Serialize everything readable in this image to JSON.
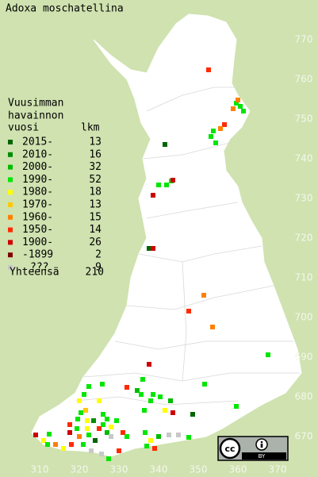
{
  "title": "Adoxa moschatellina",
  "legend": {
    "heading": [
      "Vuusimman",
      "havainnon",
      "vuosi"
    ],
    "count_heading": "lkm",
    "classes": [
      {
        "label": "2015-",
        "color": "#006400",
        "count": 13
      },
      {
        "label": "2010-",
        "color": "#008c00",
        "count": 16
      },
      {
        "label": "2000-",
        "color": "#00bb00",
        "count": 32
      },
      {
        "label": "1990-",
        "color": "#00e600",
        "count": 52
      },
      {
        "label": "1980-",
        "color": "#ffff00",
        "count": 18
      },
      {
        "label": "1970-",
        "color": "#ffc800",
        "count": 13
      },
      {
        "label": "1960-",
        "color": "#ff8000",
        "count": 15
      },
      {
        "label": "1950-",
        "color": "#ff2a00",
        "count": 14
      },
      {
        "label": "1900-",
        "color": "#cc0000",
        "count": 26
      },
      {
        "label": "-1899",
        "color": "#800000",
        "count": 2
      },
      {
        "label": "???",
        "color": "#c8c8c8",
        "count": 9
      }
    ],
    "total_label": "Yhteensä",
    "total": 210
  },
  "xticks": [
    310,
    320,
    330,
    340,
    350,
    360,
    370
  ],
  "yticks": [
    770,
    760,
    750,
    740,
    730,
    720,
    710,
    700,
    690,
    680,
    670
  ],
  "license": "BY",
  "points": [
    {
      "x": 352.6,
      "y": 762.4,
      "class": 7
    },
    {
      "x": 359.6,
      "y": 754,
      "class": 3
    },
    {
      "x": 360.6,
      "y": 753.2,
      "class": 3
    },
    {
      "x": 361.4,
      "y": 752,
      "class": 3
    },
    {
      "x": 358.8,
      "y": 752.6,
      "class": 6
    },
    {
      "x": 360,
      "y": 754.8,
      "class": 6
    },
    {
      "x": 356.6,
      "y": 748.6,
      "class": 7
    },
    {
      "x": 355.6,
      "y": 747.6,
      "class": 6
    },
    {
      "x": 353.8,
      "y": 747,
      "class": 3
    },
    {
      "x": 353.2,
      "y": 745.6,
      "class": 3
    },
    {
      "x": 354.4,
      "y": 744,
      "class": 3
    },
    {
      "x": 341.6,
      "y": 743.6,
      "class": 0
    },
    {
      "x": 343.2,
      "y": 734.4,
      "class": 3
    },
    {
      "x": 342,
      "y": 733.4,
      "class": 3
    },
    {
      "x": 340,
      "y": 733.4,
      "class": 3
    },
    {
      "x": 343.6,
      "y": 734.6,
      "class": 8
    },
    {
      "x": 338.6,
      "y": 730.8,
      "class": 8
    },
    {
      "x": 337.6,
      "y": 717.4,
      "class": 0
    },
    {
      "x": 338.6,
      "y": 717.4,
      "class": 8
    },
    {
      "x": 351.4,
      "y": 705.6,
      "class": 6
    },
    {
      "x": 347.6,
      "y": 701.6,
      "class": 7
    },
    {
      "x": 353.6,
      "y": 697.6,
      "class": 6
    },
    {
      "x": 367.6,
      "y": 690.6,
      "class": 3
    },
    {
      "x": 337.6,
      "y": 688.2,
      "class": 8
    },
    {
      "x": 336,
      "y": 684.4,
      "class": 3
    },
    {
      "x": 351.6,
      "y": 683.2,
      "class": 3
    },
    {
      "x": 332,
      "y": 682.4,
      "class": 7
    },
    {
      "x": 325.8,
      "y": 683.2,
      "class": 3
    },
    {
      "x": 322.4,
      "y": 682.6,
      "class": 3
    },
    {
      "x": 321.2,
      "y": 680.6,
      "class": 3
    },
    {
      "x": 334.6,
      "y": 681.6,
      "class": 2
    },
    {
      "x": 335.6,
      "y": 680.6,
      "class": 3
    },
    {
      "x": 338.6,
      "y": 680.6,
      "class": 3
    },
    {
      "x": 340.4,
      "y": 680,
      "class": 3
    },
    {
      "x": 343,
      "y": 679,
      "class": 2
    },
    {
      "x": 341.6,
      "y": 676.6,
      "class": 4
    },
    {
      "x": 343.6,
      "y": 676,
      "class": 8
    },
    {
      "x": 348.6,
      "y": 675.6,
      "class": 0
    },
    {
      "x": 359.6,
      "y": 677.6,
      "class": 3
    },
    {
      "x": 336.4,
      "y": 676.6,
      "class": 3
    },
    {
      "x": 338,
      "y": 679,
      "class": 3
    },
    {
      "x": 325,
      "y": 679,
      "class": 4
    },
    {
      "x": 320,
      "y": 679,
      "class": 4
    },
    {
      "x": 321.6,
      "y": 676.6,
      "class": 5
    },
    {
      "x": 326,
      "y": 675.6,
      "class": 3
    },
    {
      "x": 319.6,
      "y": 674.4,
      "class": 3
    },
    {
      "x": 323.6,
      "y": 674,
      "class": 1
    },
    {
      "x": 326,
      "y": 673,
      "class": 3
    },
    {
      "x": 325,
      "y": 672,
      "class": 7
    },
    {
      "x": 322,
      "y": 672,
      "class": 4
    },
    {
      "x": 319.4,
      "y": 672,
      "class": 3
    },
    {
      "x": 317.6,
      "y": 671,
      "class": 8
    },
    {
      "x": 320,
      "y": 670,
      "class": 6
    },
    {
      "x": 322.4,
      "y": 670.4,
      "class": 3
    },
    {
      "x": 324,
      "y": 669,
      "class": 0
    },
    {
      "x": 327,
      "y": 671,
      "class": 2
    },
    {
      "x": 328,
      "y": 670,
      "class": 10
    },
    {
      "x": 331,
      "y": 671,
      "class": 7
    },
    {
      "x": 332,
      "y": 670,
      "class": 3
    },
    {
      "x": 336.6,
      "y": 671,
      "class": 3
    },
    {
      "x": 338,
      "y": 669,
      "class": 4
    },
    {
      "x": 340,
      "y": 670,
      "class": 2
    },
    {
      "x": 342.6,
      "y": 670.4,
      "class": 10
    },
    {
      "x": 345,
      "y": 670.4,
      "class": 10
    },
    {
      "x": 347.6,
      "y": 669.8,
      "class": 3
    },
    {
      "x": 309,
      "y": 670.4,
      "class": 8
    },
    {
      "x": 311,
      "y": 669,
      "class": 4
    },
    {
      "x": 312.4,
      "y": 670.6,
      "class": 3
    },
    {
      "x": 314,
      "y": 668,
      "class": 6
    },
    {
      "x": 316,
      "y": 667,
      "class": 4
    },
    {
      "x": 318,
      "y": 668,
      "class": 7
    },
    {
      "x": 321,
      "y": 668,
      "class": 3
    },
    {
      "x": 323,
      "y": 666.4,
      "class": 10
    },
    {
      "x": 325.6,
      "y": 665.6,
      "class": 10
    },
    {
      "x": 327.4,
      "y": 664.4,
      "class": 3
    },
    {
      "x": 330,
      "y": 666.4,
      "class": 7
    },
    {
      "x": 337,
      "y": 667.6,
      "class": 3
    },
    {
      "x": 339,
      "y": 667,
      "class": 7
    },
    {
      "x": 312,
      "y": 668,
      "class": 3
    },
    {
      "x": 320.4,
      "y": 676,
      "class": 3
    },
    {
      "x": 322,
      "y": 674,
      "class": 4
    },
    {
      "x": 327,
      "y": 674.4,
      "class": 3
    },
    {
      "x": 317.6,
      "y": 673,
      "class": 7
    },
    {
      "x": 328,
      "y": 672.4,
      "class": 4
    },
    {
      "x": 329.4,
      "y": 674,
      "class": 3
    }
  ]
}
